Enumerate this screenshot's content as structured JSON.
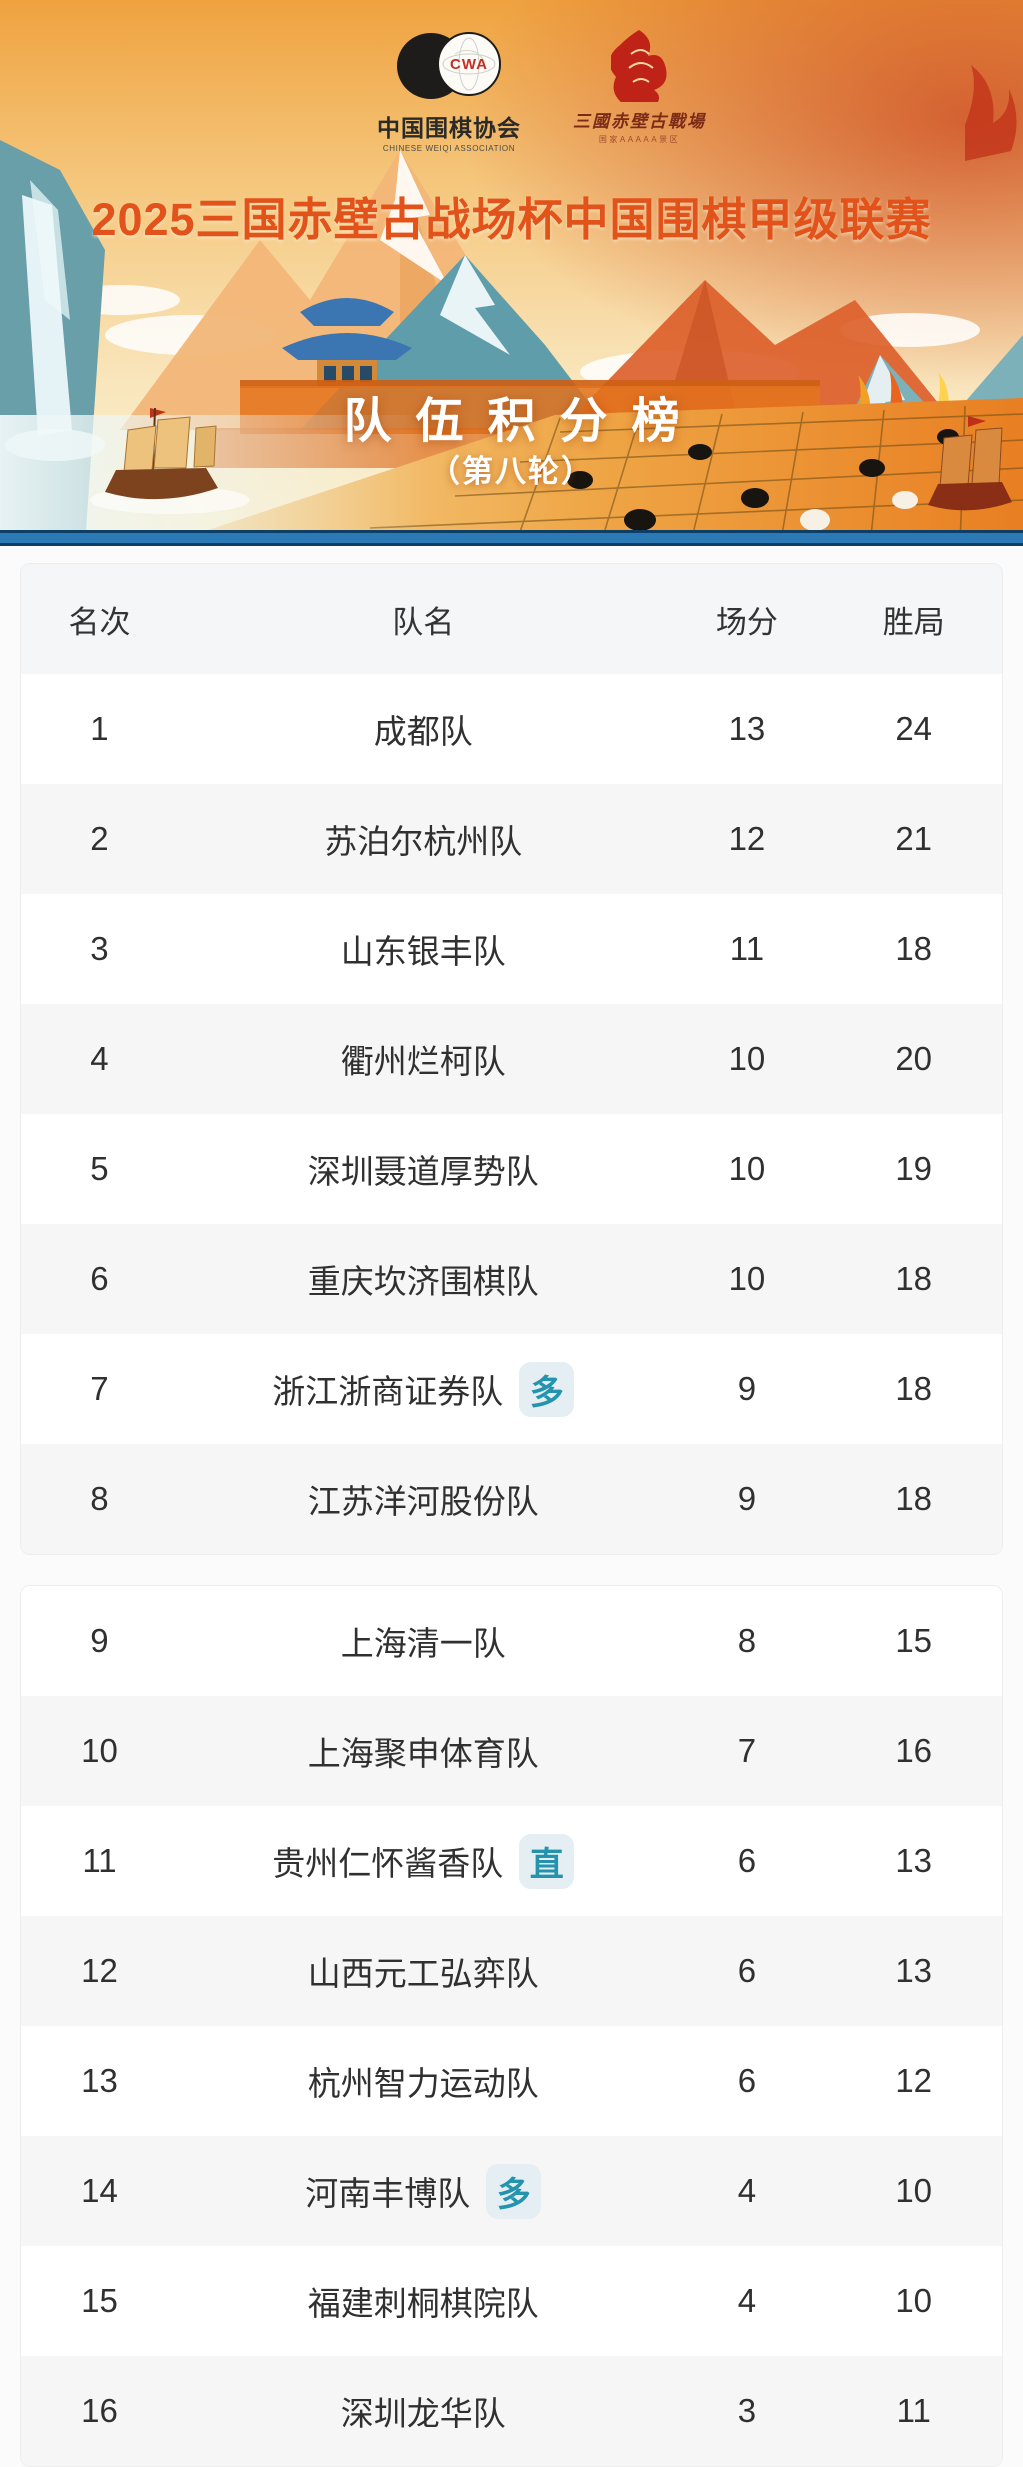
{
  "header": {
    "cwa": {
      "abbr": "CWA",
      "name_cn": "中国围棋协会",
      "name_en": "CHINESE WEIQI ASSOCIATION"
    },
    "event_logo": {
      "name_cn": "三國赤壁古戰場",
      "subtitle": "国家AAAAA景区"
    },
    "title": "2025三国赤壁古战场杯中国围棋甲级联赛",
    "banner_title": "队伍积分榜",
    "banner_subtitle": "（第八轮）"
  },
  "colors": {
    "title_orange": "#e2521b",
    "strip_blue": "#2b79b5",
    "badge_bg": "#e5eef2",
    "badge_text": "#2493ad",
    "alt_row": "#f6f6f7"
  },
  "table": {
    "columns": [
      "名次",
      "队名",
      "场分",
      "胜局"
    ],
    "groups": [
      {
        "rows": [
          {
            "rank": "1",
            "team": "成都队",
            "badge": "",
            "score": "13",
            "wins": "24"
          },
          {
            "rank": "2",
            "team": "苏泊尔杭州队",
            "badge": "",
            "score": "12",
            "wins": "21"
          },
          {
            "rank": "3",
            "team": "山东银丰队",
            "badge": "",
            "score": "11",
            "wins": "18"
          },
          {
            "rank": "4",
            "team": "衢州烂柯队",
            "badge": "",
            "score": "10",
            "wins": "20"
          },
          {
            "rank": "5",
            "team": "深圳聂道厚势队",
            "badge": "",
            "score": "10",
            "wins": "19"
          },
          {
            "rank": "6",
            "team": "重庆坎济围棋队",
            "badge": "",
            "score": "10",
            "wins": "18"
          },
          {
            "rank": "7",
            "team": "浙江浙商证券队",
            "badge": "多",
            "score": "9",
            "wins": "18"
          },
          {
            "rank": "8",
            "team": "江苏洋河股份队",
            "badge": "",
            "score": "9",
            "wins": "18"
          }
        ]
      },
      {
        "rows": [
          {
            "rank": "9",
            "team": "上海清一队",
            "badge": "",
            "score": "8",
            "wins": "15"
          },
          {
            "rank": "10",
            "team": "上海聚申体育队",
            "badge": "",
            "score": "7",
            "wins": "16"
          },
          {
            "rank": "11",
            "team": "贵州仁怀酱香队",
            "badge": "直",
            "score": "6",
            "wins": "13"
          },
          {
            "rank": "12",
            "team": "山西元工弘弈队",
            "badge": "",
            "score": "6",
            "wins": "13"
          },
          {
            "rank": "13",
            "team": "杭州智力运动队",
            "badge": "",
            "score": "6",
            "wins": "12"
          },
          {
            "rank": "14",
            "team": "河南丰博队",
            "badge": "多",
            "score": "4",
            "wins": "10"
          },
          {
            "rank": "15",
            "team": "福建刺桐棋院队",
            "badge": "",
            "score": "4",
            "wins": "10"
          },
          {
            "rank": "16",
            "team": "深圳龙华队",
            "badge": "",
            "score": "3",
            "wins": "11"
          }
        ]
      }
    ]
  }
}
